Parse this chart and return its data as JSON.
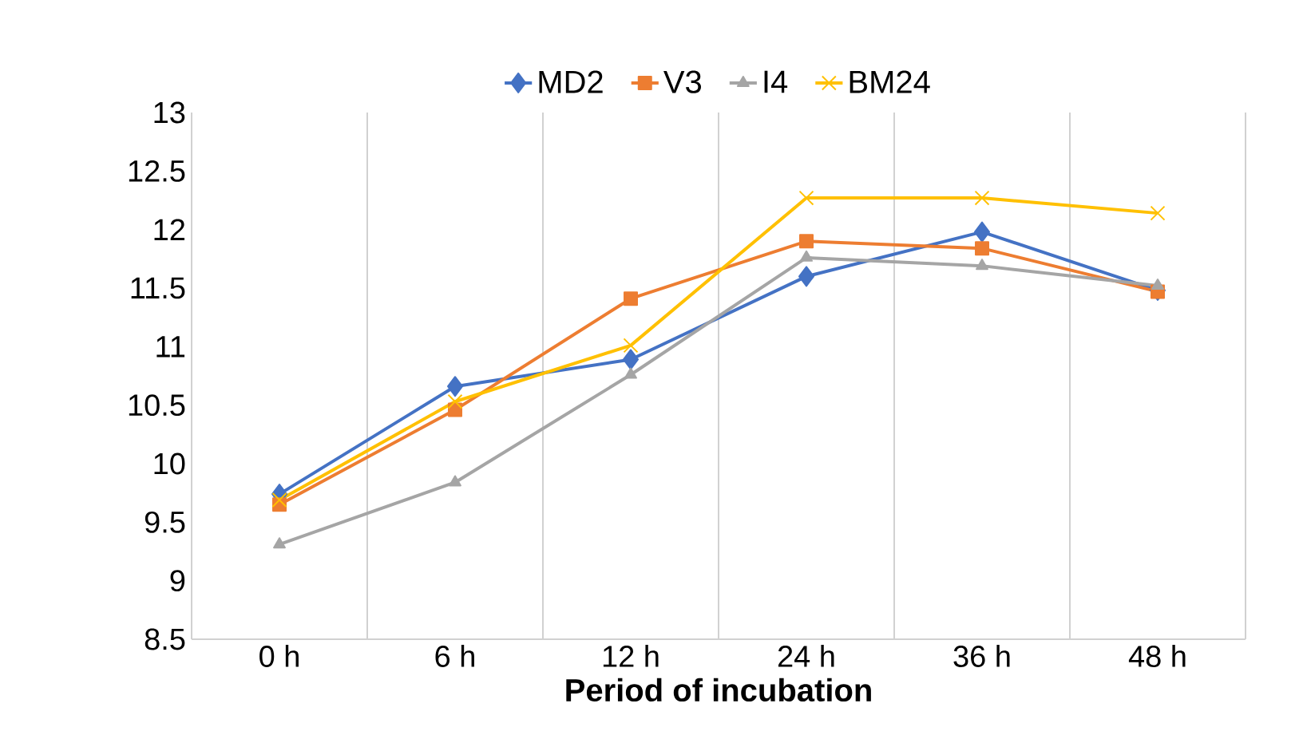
{
  "chart_data": {
    "type": "line",
    "xlabel": "Period of incubation",
    "categories": [
      "0 h",
      "6 h",
      "12 h",
      "24 h",
      "36 h",
      "48 h"
    ],
    "series": [
      {
        "name": "MD2",
        "color": "#4472c4",
        "marker": "diamond",
        "values": [
          9.74,
          10.66,
          10.89,
          11.6,
          11.98,
          11.48
        ]
      },
      {
        "name": "V3",
        "color": "#ed7d31",
        "marker": "square",
        "values": [
          9.65,
          10.46,
          11.41,
          11.9,
          11.84,
          11.47
        ]
      },
      {
        "name": "I4",
        "color": "#a5a5a5",
        "marker": "triangle",
        "values": [
          9.31,
          9.84,
          10.76,
          11.76,
          11.69,
          11.52
        ]
      },
      {
        "name": "BM24",
        "color": "#ffc000",
        "marker": "cross",
        "values": [
          9.69,
          10.53,
          11.01,
          12.27,
          12.27,
          12.14
        ]
      }
    ],
    "ylim": [
      8.5,
      13
    ],
    "yticks": [
      8.5,
      9,
      9.5,
      10,
      10.5,
      11,
      11.5,
      12,
      12.5,
      13
    ],
    "grid": "x",
    "legend": "top",
    "line_style": "solid"
  }
}
